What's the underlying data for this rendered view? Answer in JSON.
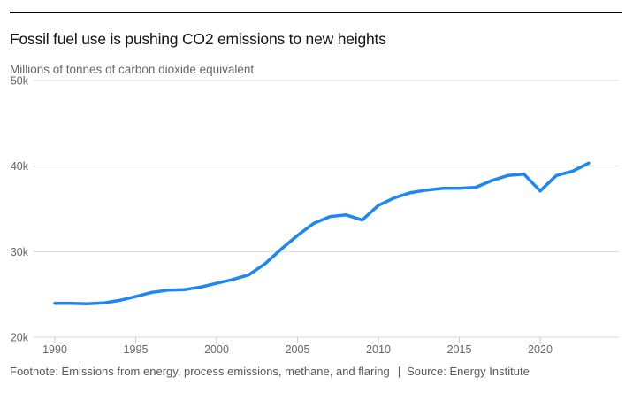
{
  "header": {
    "rule_color": "#000000"
  },
  "footer": {
    "footnote": "Footnote: Emissions from energy, process emissions, methane, and flaring",
    "separator": "|",
    "source": "Source: Energy Institute"
  },
  "chart_data": {
    "type": "line",
    "title": "Fossil fuel use is pushing CO2 emissions to new heights",
    "subtitle": "Millions of tonnes of carbon dioxide equivalent",
    "xlabel": "",
    "ylabel": "Millions of tonnes of carbon dioxide equivalent",
    "x": [
      1990,
      1991,
      1992,
      1993,
      1994,
      1995,
      1996,
      1997,
      1998,
      1999,
      2000,
      2001,
      2002,
      2003,
      2004,
      2005,
      2006,
      2007,
      2008,
      2009,
      2010,
      2011,
      2012,
      2013,
      2014,
      2015,
      2016,
      2017,
      2018,
      2019,
      2020,
      2021,
      2022,
      2023
    ],
    "series": [
      {
        "name": "CO2 emissions (millions of tonnes CO2e)",
        "values": [
          23950,
          23950,
          23900,
          24000,
          24300,
          24750,
          25250,
          25500,
          25550,
          25850,
          26300,
          26750,
          27300,
          28600,
          30300,
          31900,
          33300,
          34100,
          34300,
          33700,
          35400,
          36300,
          36900,
          37200,
          37400,
          37400,
          37500,
          38300,
          38900,
          39050,
          37100,
          38900,
          39400,
          40350
        ]
      }
    ],
    "ylim": [
      20000,
      50000
    ],
    "yticks": [
      {
        "value": 20000,
        "label": "20k"
      },
      {
        "value": 30000,
        "label": "30k"
      },
      {
        "value": 40000,
        "label": "40k"
      },
      {
        "value": 50000,
        "label": "50k"
      }
    ],
    "xticks": [
      {
        "value": 1990,
        "label": "1990"
      },
      {
        "value": 1995,
        "label": "1995"
      },
      {
        "value": 2000,
        "label": "2000"
      },
      {
        "value": 2005,
        "label": "2005"
      },
      {
        "value": 2010,
        "label": "2010"
      },
      {
        "value": 2015,
        "label": "2015"
      },
      {
        "value": 2020,
        "label": "2020"
      }
    ],
    "grid": true,
    "legend": false,
    "line_color": "#1d86f2",
    "grid_color": "#d9d9d9",
    "tick_color": "#c9c9c9",
    "label_color": "#666666"
  }
}
